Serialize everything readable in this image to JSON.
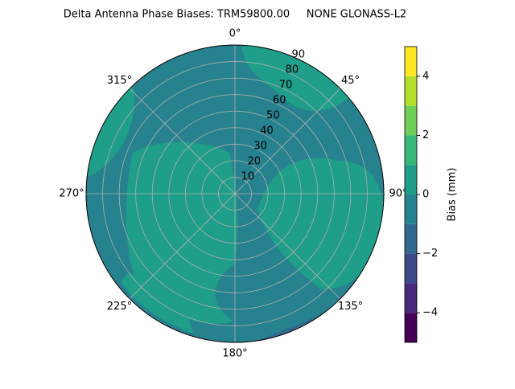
{
  "chart_data": {
    "type": "polar-contour",
    "title": "Delta Antenna Phase Biases: TRM59800.00     NONE GLONASS-L2",
    "theta_ticks": [
      {
        "value": 0,
        "label": "0°"
      },
      {
        "value": 45,
        "label": "45°"
      },
      {
        "value": 90,
        "label": "90°"
      },
      {
        "value": 135,
        "label": "135°"
      },
      {
        "value": 180,
        "label": "180°"
      },
      {
        "value": 225,
        "label": "225°"
      },
      {
        "value": 270,
        "label": "270°"
      },
      {
        "value": 315,
        "label": "315°"
      }
    ],
    "rlim": [
      0,
      90
    ],
    "rticks": [
      10,
      20,
      30,
      40,
      50,
      60,
      70,
      80,
      90
    ],
    "grid": true,
    "colorbar": {
      "label": "Bias (mm)",
      "lim": [
        -5,
        5
      ],
      "levels": [
        -5,
        -4,
        -3,
        -2,
        -1,
        0,
        1,
        2,
        3,
        4,
        5
      ],
      "colors": [
        "#440154",
        "#482878",
        "#3e4989",
        "#31688e",
        "#26828e",
        "#1f9e89",
        "#35b779",
        "#6ece58",
        "#b5de2b",
        "#fde725"
      ],
      "ticks": [
        {
          "value": -4,
          "label": "−4"
        },
        {
          "value": -2,
          "label": "−2"
        },
        0,
        2,
        4
      ]
    }
  }
}
